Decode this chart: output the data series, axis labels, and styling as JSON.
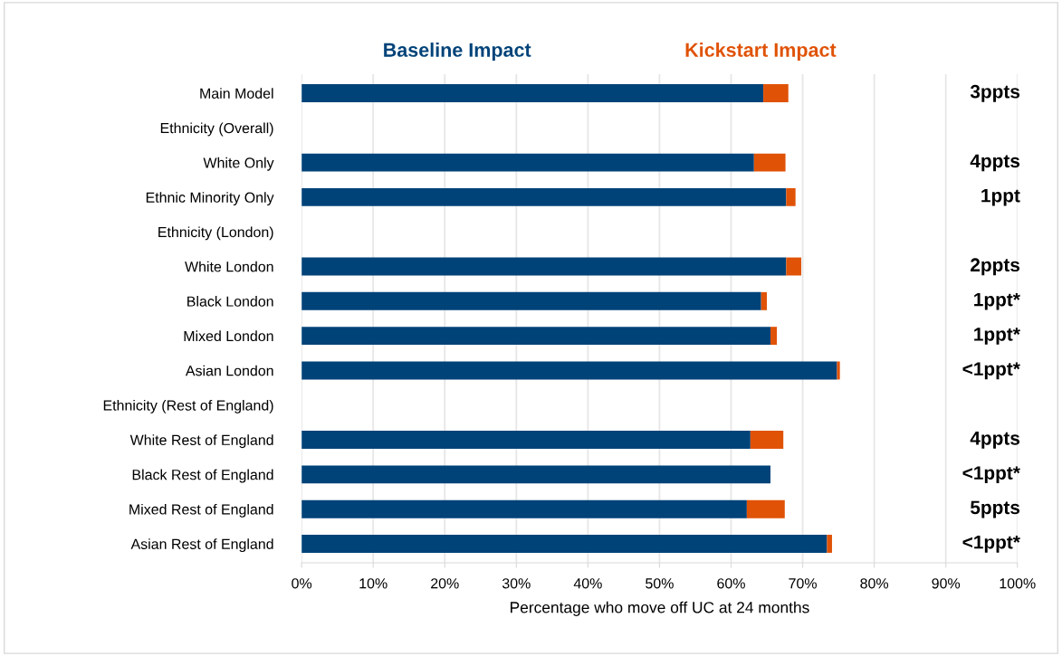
{
  "chart_data": {
    "type": "bar",
    "orientation": "horizontal",
    "stacked": true,
    "categories": [
      "Main Model",
      "Ethnicity (Overall)",
      "White Only",
      "Ethnic Minority Only",
      "Ethnicity (London)",
      "White London",
      "Black London",
      "Mixed London",
      "Asian London",
      "Ethnicity (Rest of England)",
      "White Rest of England",
      "Black Rest of England",
      "Mixed Rest of England",
      "Asian Rest of England"
    ],
    "series": [
      {
        "name": "Baseline Impact",
        "color": "#004379",
        "values": [
          64.5,
          null,
          63.2,
          67.7,
          null,
          67.7,
          64.2,
          65.5,
          74.8,
          null,
          62.7,
          65.5,
          62.2,
          73.4
        ]
      },
      {
        "name": "Kickstart Impact",
        "color": "#e05206",
        "values": [
          3.5,
          null,
          4.4,
          1.3,
          null,
          2.1,
          0.8,
          0.9,
          0.4,
          null,
          4.6,
          0,
          5.3,
          0.7
        ]
      }
    ],
    "annotations": [
      "3ppts",
      "4ppts",
      "1ppt",
      "2ppts",
      "1ppt*",
      "1ppt*",
      "<1ppt*",
      "4ppts",
      "<1ppt*",
      "5ppts",
      "<1ppt*"
    ],
    "xlabel": "Percentage who move off UC at 24 months",
    "xlim": [
      0,
      100
    ],
    "xticks": [
      {
        "value": 0,
        "label": "0%"
      },
      {
        "value": 10,
        "label": "10%"
      },
      {
        "value": 20,
        "label": "20%"
      },
      {
        "value": 30,
        "label": "30%"
      },
      {
        "value": 40,
        "label": "40%"
      },
      {
        "value": 50,
        "label": "50%"
      },
      {
        "value": 60,
        "label": "60%"
      },
      {
        "value": 70,
        "label": "70%"
      },
      {
        "value": 80,
        "label": "80%"
      },
      {
        "value": 90,
        "label": "90%"
      },
      {
        "value": 100,
        "label": "100%"
      }
    ],
    "grid": "x",
    "legend": "top"
  }
}
